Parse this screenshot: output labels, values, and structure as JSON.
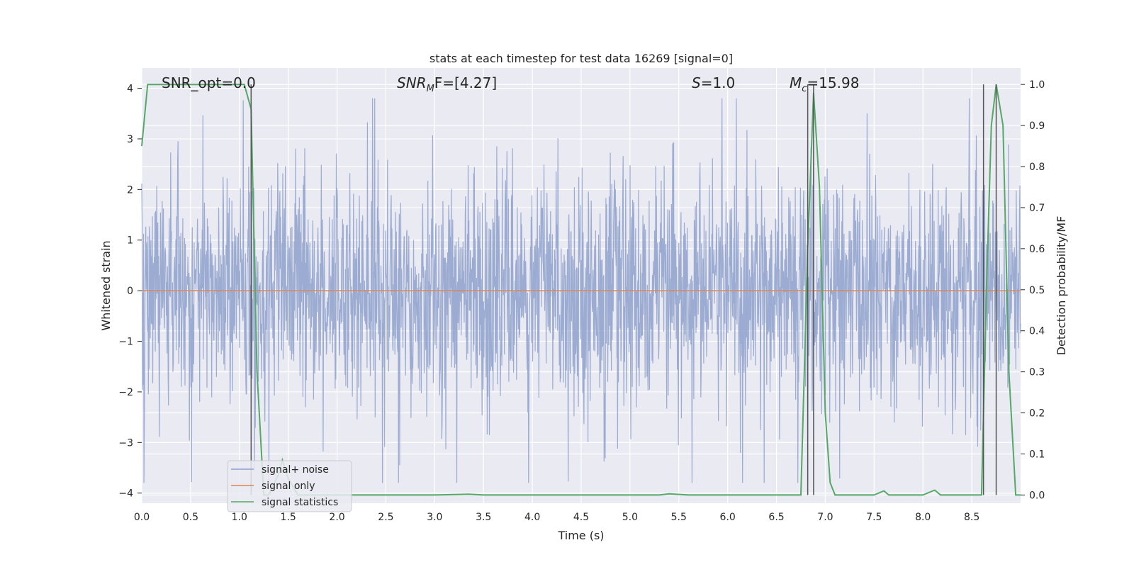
{
  "chart_data": {
    "type": "line",
    "title": "stats at each timestep for test data 16269 [signal=0]",
    "xlabel": "Time (s)",
    "ylabel": "Whitened strain",
    "y2label": "Detection probability/MF",
    "xlim": [
      0.0,
      9.0
    ],
    "ylim": [
      -4.2,
      4.4
    ],
    "y2lim": [
      -0.02,
      1.04
    ],
    "xticks": [
      "0.0",
      "0.5",
      "1.0",
      "1.5",
      "2.0",
      "2.5",
      "3.0",
      "3.5",
      "4.0",
      "4.5",
      "5.0",
      "5.5",
      "6.0",
      "6.5",
      "7.0",
      "7.5",
      "8.0",
      "8.5"
    ],
    "yticks": [
      "4",
      "3",
      "2",
      "1",
      "0",
      "−1",
      "−2",
      "−3",
      "−4"
    ],
    "y2ticks": [
      "1.0",
      "0.9",
      "0.8",
      "0.7",
      "0.6",
      "0.5",
      "0.4",
      "0.3",
      "0.2",
      "0.1",
      "0.0"
    ],
    "grid": true,
    "legend_position": "lower-left",
    "annotations": {
      "snr_opt": "SNR_opt=0.0",
      "snr_mf_pre": "SNR",
      "snr_mf_sub": "M",
      "snr_mf_post": "F=[4.27]",
      "s_var": "S",
      "s_val": "=1.0",
      "mc_var": "M",
      "mc_sub": "c",
      "mc_val": "=15.98"
    },
    "series": [
      {
        "name": "signal+ noise",
        "color": "#8da0cb",
        "description_level": "noisy whitened strain, approx. ±1.5 core band with spikes to ±3.5",
        "envelope": {
          "core": [
            -1.5,
            1.6
          ],
          "spikes": [
            -3.8,
            3.8
          ]
        }
      },
      {
        "name": "signal only",
        "color": "#dd8452",
        "x": [
          0.0,
          9.0
        ],
        "y": [
          0.0,
          0.0
        ]
      },
      {
        "name": "signal statistics",
        "color": "#55a868",
        "x": [
          0.0,
          0.06,
          0.12,
          0.2,
          0.5,
          0.8,
          1.05,
          1.12,
          1.18,
          1.25,
          1.3,
          1.4,
          1.44,
          1.5,
          1.6,
          2.0,
          3.0,
          3.35,
          3.5,
          4.0,
          5.0,
          5.3,
          5.4,
          5.6,
          6.0,
          6.5,
          6.75,
          6.82,
          6.88,
          6.94,
          7.0,
          7.05,
          7.1,
          7.2,
          7.5,
          7.6,
          7.65,
          7.75,
          8.0,
          8.12,
          8.18,
          8.3,
          8.6,
          8.65,
          8.7,
          8.75,
          8.82,
          8.88,
          8.95,
          9.0
        ],
        "y": [
          0.85,
          1.0,
          1.0,
          1.0,
          1.0,
          1.0,
          1.0,
          0.94,
          0.3,
          0.0,
          0.0,
          0.05,
          0.085,
          0.04,
          0.0,
          0.0,
          0.0,
          0.002,
          0.0,
          0.0,
          0.0,
          0.0,
          0.003,
          0.0,
          0.0,
          0.0,
          0.0,
          0.6,
          0.98,
          0.75,
          0.2,
          0.03,
          0.0,
          0.0,
          0.0,
          0.01,
          0.0,
          0.0,
          0.0,
          0.012,
          0.0,
          0.0,
          0.0,
          0.5,
          0.9,
          1.0,
          0.9,
          0.3,
          0.0,
          0.0
        ]
      }
    ],
    "vlines": [
      1.12,
      6.82,
      6.88,
      8.62,
      8.75
    ]
  }
}
